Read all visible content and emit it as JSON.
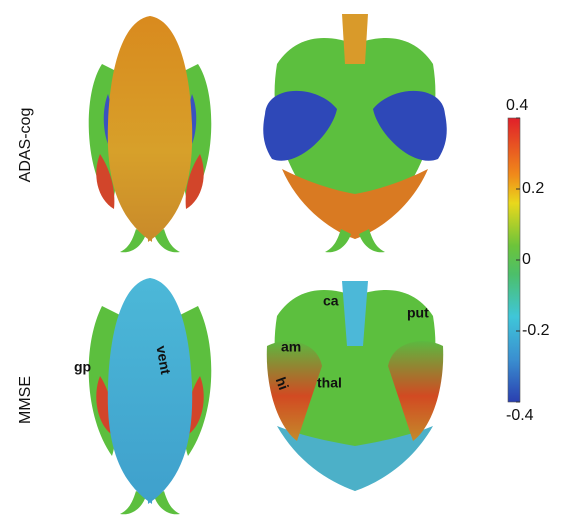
{
  "row_labels": [
    "ADAS-cog",
    "MMSE"
  ],
  "regions": {
    "gp": "gp",
    "vent": "vent",
    "ca": "ca",
    "put": "put",
    "am": "am",
    "hi": "hi",
    "thal": "thal"
  },
  "colorbar": {
    "lim": [
      -0.4,
      0.4
    ],
    "ticks": [
      0.4,
      0.2,
      0,
      -0.2,
      -0.4
    ]
  }
}
